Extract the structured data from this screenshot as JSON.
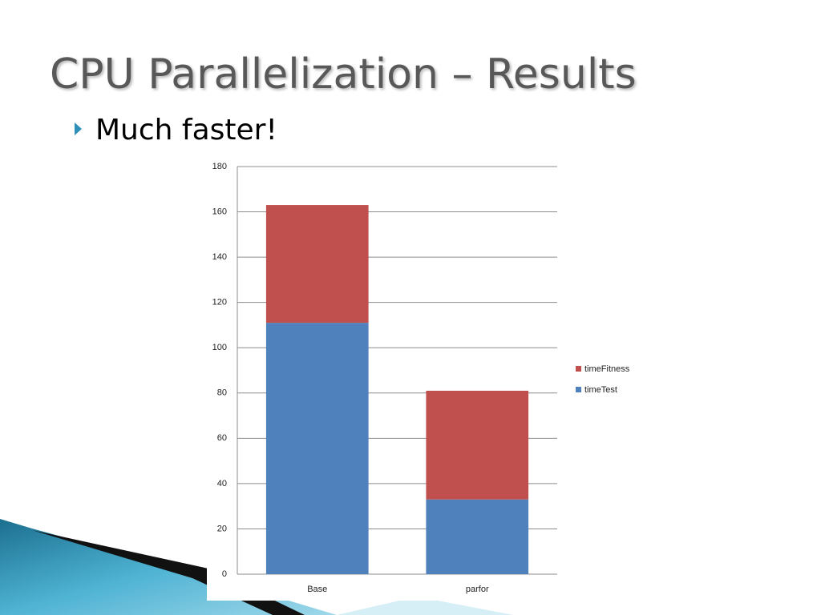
{
  "slide": {
    "title": "CPU Parallelization – Results",
    "bullet": "Much faster!"
  },
  "chart_data": {
    "type": "bar",
    "stacked": true,
    "categories": [
      "Base",
      "parfor"
    ],
    "series": [
      {
        "name": "timeTest",
        "color": "#4f81bd",
        "values": [
          111,
          33
        ]
      },
      {
        "name": "timeFitness",
        "color": "#c0504d",
        "values": [
          52,
          48
        ]
      }
    ],
    "ylim": [
      0,
      180
    ],
    "yticks": [
      0,
      20,
      40,
      60,
      80,
      100,
      120,
      140,
      160,
      180
    ],
    "grid": true,
    "legend": "right"
  }
}
